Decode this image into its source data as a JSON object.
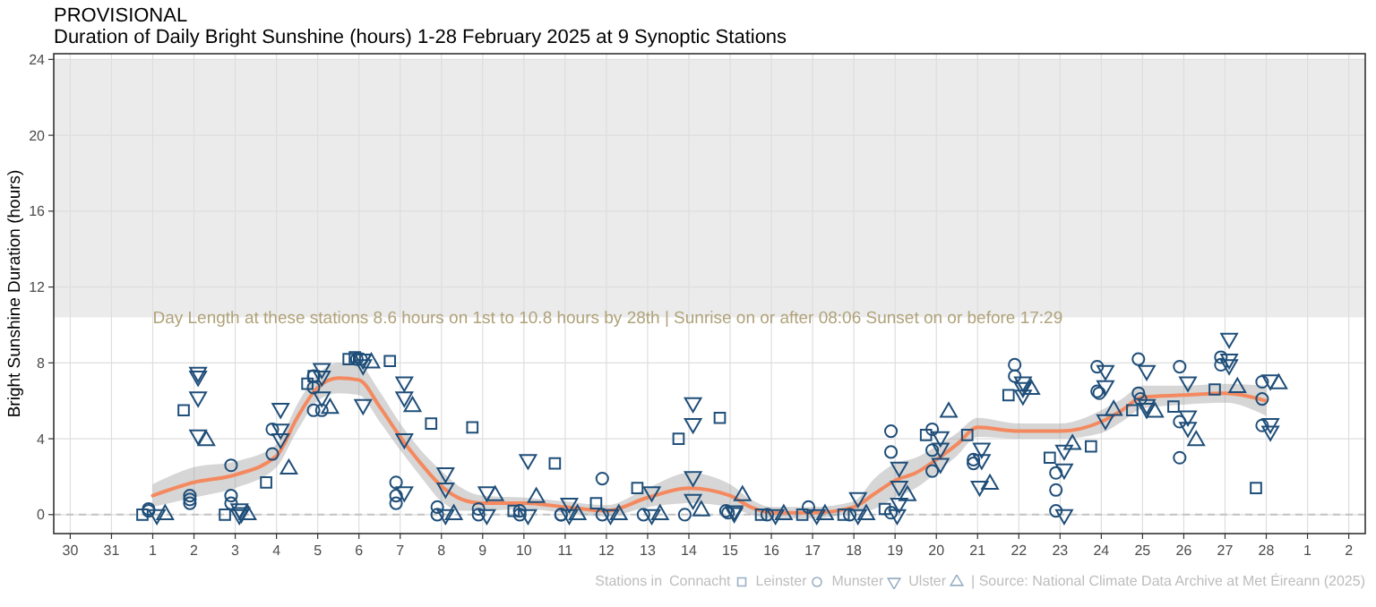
{
  "chart_data": {
    "type": "scatter",
    "title": "PROVISIONAL",
    "subtitle": "Duration of Daily Bright Sunshine (hours) 1-28 February 2025 at 9 Synoptic Stations",
    "ylabel": "Bright Sunshine Duration (hours)",
    "legend_title": "Stations in",
    "legend": "bottom right",
    "grid": true,
    "xlim": [
      "2025-01-29T14:24",
      "2025-03-02T09:36"
    ],
    "xticks": [
      {
        "value": "2025-01-30",
        "label": "30"
      },
      {
        "value": "2025-01-31",
        "label": "31"
      },
      {
        "value": "2025-02-01",
        "label": "1"
      },
      {
        "value": "2025-02-02",
        "label": "2"
      },
      {
        "value": "2025-02-03",
        "label": "3"
      },
      {
        "value": "2025-02-04",
        "label": "4"
      },
      {
        "value": "2025-02-05",
        "label": "5"
      },
      {
        "value": "2025-02-06",
        "label": "6"
      },
      {
        "value": "2025-02-07",
        "label": "7"
      },
      {
        "value": "2025-02-08",
        "label": "8"
      },
      {
        "value": "2025-02-09",
        "label": "9"
      },
      {
        "value": "2025-02-10",
        "label": "10"
      },
      {
        "value": "2025-02-11",
        "label": "11"
      },
      {
        "value": "2025-02-12",
        "label": "12"
      },
      {
        "value": "2025-02-13",
        "label": "13"
      },
      {
        "value": "2025-02-14",
        "label": "14"
      },
      {
        "value": "2025-02-15",
        "label": "15"
      },
      {
        "value": "2025-02-16",
        "label": "16"
      },
      {
        "value": "2025-02-17",
        "label": "17"
      },
      {
        "value": "2025-02-18",
        "label": "18"
      },
      {
        "value": "2025-02-19",
        "label": "19"
      },
      {
        "value": "2025-02-20",
        "label": "20"
      },
      {
        "value": "2025-02-21",
        "label": "21"
      },
      {
        "value": "2025-02-22",
        "label": "22"
      },
      {
        "value": "2025-02-23",
        "label": "23"
      },
      {
        "value": "2025-02-24",
        "label": "24"
      },
      {
        "value": "2025-02-25",
        "label": "25"
      },
      {
        "value": "2025-02-26",
        "label": "26"
      },
      {
        "value": "2025-02-27",
        "label": "27"
      },
      {
        "value": "2025-02-28",
        "label": "28"
      },
      {
        "value": "2025-03-01",
        "label": "1"
      },
      {
        "value": "2025-03-02",
        "label": "2"
      }
    ],
    "ylim": [
      -1.0,
      24.3
    ],
    "yticks": [
      0,
      4,
      8,
      12,
      16,
      20,
      24
    ],
    "ref_lines": [
      {
        "axis": "y",
        "value": 0,
        "color": "#c4c4c4",
        "line_style": "dashed"
      }
    ],
    "bands": [
      {
        "axis": "y",
        "from": 10.4,
        "to": 24,
        "color": "#ebebeb"
      }
    ],
    "annotations": [
      {
        "text": "Day Length at these stations 8.6 hours on 1st to 10.8 hours by 28th | Sunrise on or after 08:06 Sunset on or before 17:29",
        "x": "2025-02-01",
        "y": 10.4
      },
      "| Source: National Climate Data Archive at Met Éireann (2025)"
    ],
    "series": [
      {
        "type": "line",
        "color": "#f4895f",
        "x": [
          "2025-02-01",
          "2025-02-02",
          "2025-02-03",
          "2025-02-04",
          "2025-02-04T12:00",
          "2025-02-05",
          "2025-02-05T12:00",
          "2025-02-06",
          "2025-02-06T12:00",
          "2025-02-07",
          "2025-02-07T12:00",
          "2025-02-08",
          "2025-02-08T12:00",
          "2025-02-09",
          "2025-02-10",
          "2025-02-11",
          "2025-02-12",
          "2025-02-13",
          "2025-02-14",
          "2025-02-15",
          "2025-02-15T12:00",
          "2025-02-16",
          "2025-02-17",
          "2025-02-18",
          "2025-02-18T12:00",
          "2025-02-19",
          "2025-02-19T12:00",
          "2025-02-20",
          "2025-02-20T12:00",
          "2025-02-21",
          "2025-02-22",
          "2025-02-23",
          "2025-02-24",
          "2025-02-24T12:00",
          "2025-02-25",
          "2025-02-26",
          "2025-02-27",
          "2025-02-28"
        ],
        "values": [
          1.0,
          1.7,
          2.1,
          3.1,
          5.1,
          6.7,
          7.2,
          7.1,
          5.7,
          4.1,
          2.7,
          1.5,
          0.8,
          0.6,
          0.6,
          0.4,
          0.2,
          0.9,
          1.4,
          1.0,
          0.4,
          0.1,
          0.1,
          0.4,
          1.1,
          1.8,
          2.2,
          2.9,
          3.7,
          4.6,
          4.4,
          4.4,
          4.9,
          5.5,
          6.2,
          6.3,
          6.4,
          6.0
        ],
        "lower": [
          0.4,
          0.9,
          1.4,
          2.5,
          4.4,
          6.0,
          6.4,
          6.3,
          4.9,
          3.4,
          2.0,
          0.7,
          0.2,
          0.2,
          0.3,
          0.1,
          -0.1,
          0.4,
          0.6,
          0.4,
          0.0,
          -0.2,
          -0.2,
          0.1,
          0.3,
          0.9,
          1.4,
          2.2,
          3.1,
          4.1,
          4.0,
          4.0,
          4.3,
          4.9,
          5.6,
          5.8,
          5.9,
          5.2
        ],
        "upper": [
          1.6,
          2.5,
          2.8,
          3.7,
          5.8,
          7.4,
          8.0,
          7.9,
          6.5,
          4.8,
          3.4,
          2.3,
          1.4,
          1.0,
          0.9,
          0.7,
          0.5,
          1.4,
          2.2,
          1.6,
          0.8,
          0.4,
          0.4,
          0.7,
          1.9,
          2.7,
          3.0,
          3.6,
          4.3,
          5.1,
          4.8,
          4.8,
          5.5,
          6.1,
          6.8,
          6.8,
          6.9,
          6.8
        ]
      },
      {
        "name": "Connacht",
        "marker": "square",
        "color": "#1f4e79",
        "x": [
          "2025-01-31T18:00",
          "2025-02-01T18:00",
          "2025-02-02T18:00",
          "2025-02-03T18:00",
          "2025-02-04T18:00",
          "2025-02-04T21:36",
          "2025-02-05T18:00",
          "2025-02-05T21:36",
          "2025-02-06T18:00",
          "2025-02-07T18:00",
          "2025-02-08T18:00",
          "2025-02-09T18:00",
          "2025-02-10T18:00",
          "2025-02-11T18:00",
          "2025-02-12T18:00",
          "2025-02-13T18:00",
          "2025-02-14T18:00",
          "2025-02-15T18:00",
          "2025-02-16T18:00",
          "2025-02-17T18:00",
          "2025-02-18T18:00",
          "2025-02-19T18:00",
          "2025-02-20T18:00",
          "2025-02-21T18:00",
          "2025-02-22T18:00",
          "2025-02-23T18:00",
          "2025-02-24T18:00",
          "2025-02-25T18:00",
          "2025-02-26T18:00",
          "2025-02-27T18:00"
        ],
        "values": [
          0,
          5.5,
          0,
          1.7,
          6.9,
          7.3,
          8.2,
          8.3,
          8.1,
          4.8,
          4.6,
          0.2,
          2.7,
          0.6,
          1.4,
          4.0,
          5.1,
          0,
          0,
          0,
          0.3,
          4.2,
          4.2,
          6.3,
          3.0,
          3.6,
          5.5,
          5.7,
          6.6,
          1.4
        ]
      },
      {
        "name": "Leinster",
        "marker": "circle",
        "color": "#1f4e79",
        "x": [
          "2025-01-31T21:36",
          "2025-01-31T21:36",
          "2025-02-01T21:36",
          "2025-02-01T21:36",
          "2025-02-01T21:36",
          "2025-02-02T21:36",
          "2025-02-02T21:36",
          "2025-02-02T21:36",
          "2025-02-03T21:36",
          "2025-02-03T21:36",
          "2025-02-04T21:36",
          "2025-02-04T21:36",
          "2025-02-04T21:36",
          "2025-02-05T02:24",
          "2025-02-05T22:48",
          "2025-02-06T01:12",
          "2025-02-06T21:36",
          "2025-02-06T21:36",
          "2025-02-06T21:36",
          "2025-02-07T21:36",
          "2025-02-07T21:36",
          "2025-02-08T21:36",
          "2025-02-08T21:36",
          "2025-02-09T21:36",
          "2025-02-09T21:36",
          "2025-02-10T21:36",
          "2025-02-10T21:36",
          "2025-02-11T21:36",
          "2025-02-11T21:36",
          "2025-02-12T21:36",
          "2025-02-13T21:36",
          "2025-02-14T21:36",
          "2025-02-14T22:48",
          "2025-02-15T21:36",
          "2025-02-16T21:36",
          "2025-02-17T21:36",
          "2025-02-18T21:36",
          "2025-02-18T21:36",
          "2025-02-18T21:36",
          "2025-02-19T21:36",
          "2025-02-19T21:36",
          "2025-02-19T21:36",
          "2025-02-20T21:36",
          "2025-02-20T21:36",
          "2025-02-21T21:36",
          "2025-02-21T21:36",
          "2025-02-22T21:36",
          "2025-02-22T21:36",
          "2025-02-22T21:36",
          "2025-02-23T21:36",
          "2025-02-23T21:36",
          "2025-02-23T22:48",
          "2025-02-24T21:36",
          "2025-02-24T21:36",
          "2025-02-24T22:48",
          "2025-02-25T21:36",
          "2025-02-25T21:36",
          "2025-02-25T21:36",
          "2025-02-26T21:36",
          "2025-02-26T21:36",
          "2025-02-27T21:36",
          "2025-02-27T21:36",
          "2025-02-27T21:36"
        ],
        "values": [
          0.2,
          0.3,
          1.0,
          0.8,
          0.6,
          2.6,
          1.0,
          0.6,
          4.5,
          3.2,
          6.7,
          7.3,
          5.5,
          5.5,
          8.2,
          8.2,
          1.7,
          1.0,
          0.6,
          0.4,
          0,
          0.3,
          0,
          0.2,
          0,
          0,
          0,
          1.9,
          0,
          0,
          0,
          0.2,
          0.1,
          0,
          0.4,
          0,
          4.4,
          3.3,
          0.1,
          4.5,
          3.4,
          2.3,
          2.9,
          2.7,
          7.9,
          7.3,
          2.2,
          1.3,
          0.2,
          7.8,
          6.5,
          6.4,
          8.2,
          6.4,
          6.1,
          7.8,
          4.9,
          3.0,
          8.3,
          7.9,
          7.0,
          6.1,
          4.7
        ]
      },
      {
        "name": "Munster",
        "marker": "triangle-down",
        "color": "#1f4e79",
        "x": [
          "2025-02-01T02:24",
          "2025-02-02T02:24",
          "2025-02-02T02:24",
          "2025-02-02T02:24",
          "2025-02-02T02:24",
          "2025-02-03T02:24",
          "2025-02-03T02:24",
          "2025-02-03T03:36",
          "2025-02-04T02:24",
          "2025-02-04T02:24",
          "2025-02-04T02:24",
          "2025-02-05T02:24",
          "2025-02-05T02:24",
          "2025-02-05T02:24",
          "2025-02-06T02:24",
          "2025-02-06T02:24",
          "2025-02-06T02:24",
          "2025-02-07T02:24",
          "2025-02-07T02:24",
          "2025-02-07T02:24",
          "2025-02-07T02:24",
          "2025-02-08T02:24",
          "2025-02-08T02:24",
          "2025-02-08T02:24",
          "2025-02-09T02:24",
          "2025-02-09T02:24",
          "2025-02-10T02:24",
          "2025-02-10T02:24",
          "2025-02-11T02:24",
          "2025-02-11T02:24",
          "2025-02-12T02:24",
          "2025-02-13T02:24",
          "2025-02-13T02:24",
          "2025-02-14T02:24",
          "2025-02-14T02:24",
          "2025-02-14T02:24",
          "2025-02-14T02:24",
          "2025-02-15T02:24",
          "2025-02-15T02:24",
          "2025-02-16T02:24",
          "2025-02-17T02:24",
          "2025-02-18T02:24",
          "2025-02-18T02:24",
          "2025-02-19T02:24",
          "2025-02-19T02:24",
          "2025-02-19T02:24",
          "2025-02-19T01:12",
          "2025-02-20T02:24",
          "2025-02-20T02:24",
          "2025-02-20T02:24",
          "2025-02-21T02:24",
          "2025-02-21T02:24",
          "2025-02-21T01:12",
          "2025-02-22T02:24",
          "2025-02-22T02:24",
          "2025-02-22T02:24",
          "2025-02-23T02:24",
          "2025-02-23T02:24",
          "2025-02-23T02:24",
          "2025-02-24T02:24",
          "2025-02-24T02:24",
          "2025-02-24T02:24",
          "2025-02-25T02:24",
          "2025-02-25T02:24",
          "2025-02-25T02:24",
          "2025-02-26T02:24",
          "2025-02-26T02:24",
          "2025-02-26T02:24",
          "2025-02-27T02:24",
          "2025-02-27T02:24",
          "2025-02-27T02:24",
          "2025-02-28T02:24",
          "2025-02-28T02:24",
          "2025-02-28T02:24"
        ],
        "values": [
          0,
          7.5,
          7.3,
          6.2,
          4.2,
          0.3,
          0,
          0.1,
          5.6,
          4.5,
          4.0,
          7.7,
          7.3,
          6.2,
          8.2,
          7.9,
          5.8,
          7.0,
          6.2,
          4.0,
          1.2,
          2.2,
          1.4,
          0,
          1.2,
          0,
          2.9,
          0,
          0.6,
          0,
          0,
          1.2,
          0,
          5.9,
          4.8,
          2.0,
          0.8,
          0.2,
          0.1,
          0,
          0,
          0.9,
          0,
          2.5,
          1.5,
          0.6,
          0,
          4.1,
          3.5,
          2.7,
          3.5,
          2.9,
          1.5,
          7.0,
          6.7,
          6.3,
          3.4,
          2.4,
          0,
          7.6,
          6.8,
          5.0,
          7.6,
          5.8,
          5.6,
          7.0,
          5.2,
          4.6,
          9.3,
          8.2,
          7.9,
          7.1,
          4.8,
          4.4
        ]
      },
      {
        "name": "Ulster",
        "marker": "triangle",
        "color": "#1f4e79",
        "x": [
          "2025-02-01T07:12",
          "2025-02-02T07:12",
          "2025-02-03T07:12",
          "2025-02-04T07:12",
          "2025-02-05T07:12",
          "2025-02-06T07:12",
          "2025-02-07T07:12",
          "2025-02-08T07:12",
          "2025-02-09T07:12",
          "2025-02-10T07:12",
          "2025-02-11T07:12",
          "2025-02-12T07:12",
          "2025-02-13T07:12",
          "2025-02-14T07:12",
          "2025-02-15T07:12",
          "2025-02-16T07:12",
          "2025-02-17T07:12",
          "2025-02-18T07:12",
          "2025-02-19T07:12",
          "2025-02-20T07:12",
          "2025-02-21T07:12",
          "2025-02-22T07:12",
          "2025-02-23T07:12",
          "2025-02-24T07:12",
          "2025-02-25T07:12",
          "2025-02-26T07:12",
          "2025-02-27T07:12",
          "2025-02-28T07:12"
        ],
        "values": [
          0,
          3.9,
          0,
          2.4,
          5.6,
          8.0,
          5.7,
          0,
          1.0,
          0.9,
          0,
          0,
          0,
          0.2,
          1.0,
          0,
          0,
          0,
          1.0,
          5.4,
          1.6,
          6.6,
          3.7,
          5.5,
          5.4,
          3.9,
          6.7,
          6.9
        ]
      }
    ]
  }
}
